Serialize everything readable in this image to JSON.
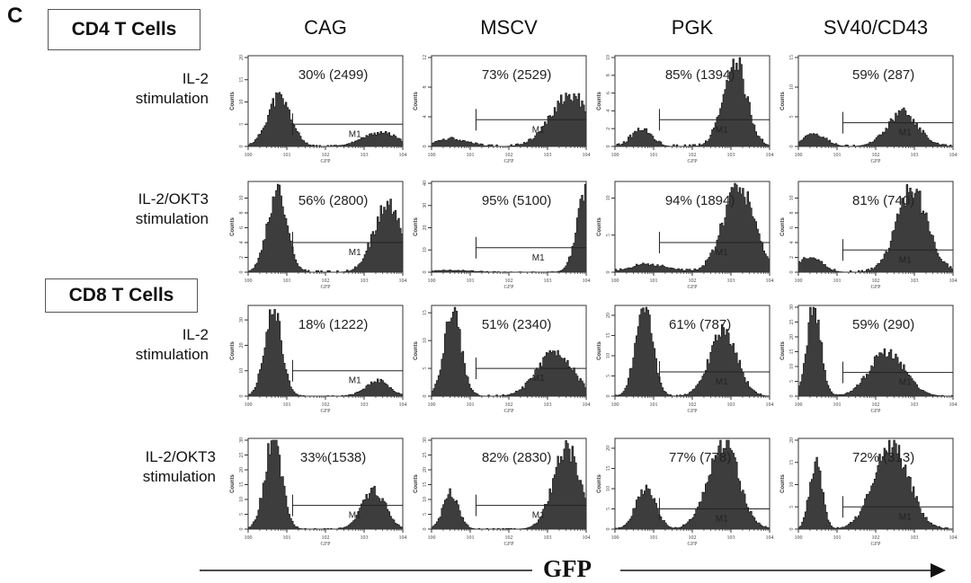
{
  "figure": {
    "panel_letter": "C",
    "groups": [
      {
        "label": "CD4 T Cells"
      },
      {
        "label": "CD8 T Cells"
      }
    ],
    "columns": [
      "CAG",
      "MSCV",
      "PGK",
      "SV40/CD43"
    ],
    "row_labels": [
      {
        "line1": "IL-2",
        "line2": "stimulation"
      },
      {
        "line1": "IL-2/OKT3",
        "line2": "stimulation"
      },
      {
        "line1": "IL-2",
        "line2": "stimulation"
      },
      {
        "line1": "IL-2/OKT3",
        "line2": "stimulation"
      }
    ],
    "bottom_axis_label": "GFP"
  },
  "chart_data": {
    "type": "area",
    "description": "Grid of GFP flow-cytometry histograms (4 rows x 4 promoters)",
    "x_axis": {
      "label": "GFP",
      "scale": "log",
      "range": [
        1,
        10000
      ],
      "tick_labels": [
        "10^0",
        "10^1",
        "10^2",
        "10^3",
        "10^4"
      ]
    },
    "y_axis": {
      "label": "Counts"
    },
    "gate_label": "M1",
    "gate_start_log10": 1.15,
    "panels": [
      {
        "row": 0,
        "column": "CAG",
        "annotation": "30% (2499)",
        "percent": 30,
        "mfi": 2499,
        "ymax": 20,
        "yticks": [
          0,
          5,
          10,
          15,
          20
        ],
        "gate_level": 5,
        "peaks": [
          {
            "mu": 0.8,
            "sigma": 0.3,
            "h": 11
          },
          {
            "mu": 3.4,
            "sigma": 0.45,
            "h": 3
          }
        ]
      },
      {
        "row": 0,
        "column": "MSCV",
        "annotation": "73% (2529)",
        "percent": 73,
        "mfi": 2529,
        "ymax": 12,
        "yticks": [
          0,
          4,
          8,
          12
        ],
        "gate_level": null,
        "peaks": [
          {
            "mu": 0.5,
            "sigma": 0.4,
            "h": 1
          },
          {
            "mu": 3.6,
            "sigma": 0.5,
            "h": 7
          }
        ]
      },
      {
        "row": 0,
        "column": "PGK",
        "annotation": "85% (1394)",
        "percent": 85,
        "mfi": 1394,
        "ymax": 10,
        "yticks": [
          0,
          2,
          4,
          6,
          8,
          10
        ],
        "gate_level": 3,
        "peaks": [
          {
            "mu": 0.7,
            "sigma": 0.25,
            "h": 2
          },
          {
            "mu": 3.1,
            "sigma": 0.3,
            "h": 9.5
          }
        ]
      },
      {
        "row": 0,
        "column": "SV40/CD43",
        "annotation": "59% (287)",
        "percent": 59,
        "mfi": 287,
        "ymax": 15,
        "yticks": [
          0,
          5,
          10,
          15
        ],
        "gate_level": 4,
        "peaks": [
          {
            "mu": 0.4,
            "sigma": 0.3,
            "h": 2
          },
          {
            "mu": 2.7,
            "sigma": 0.4,
            "h": 5.5
          }
        ]
      },
      {
        "row": 1,
        "column": "CAG",
        "annotation": "56% (2800)",
        "percent": 56,
        "mfi": 2800,
        "ymax": 12,
        "yticks": [
          0,
          2,
          4,
          6,
          8,
          10
        ],
        "gate_level": 4,
        "peaks": [
          {
            "mu": 0.75,
            "sigma": 0.25,
            "h": 11
          },
          {
            "mu": 3.6,
            "sigma": 0.35,
            "h": 9
          }
        ]
      },
      {
        "row": 1,
        "column": "MSCV",
        "annotation": "95% (5100)",
        "percent": 95,
        "mfi": 5100,
        "ymax": 40,
        "yticks": [
          0,
          10,
          20,
          30,
          40
        ],
        "gate_level": 11,
        "peaks": [
          {
            "mu": 0.5,
            "sigma": 0.5,
            "h": 0.8
          },
          {
            "mu": 4.05,
            "sigma": 0.25,
            "h": 40
          }
        ]
      },
      {
        "row": 1,
        "column": "PGK",
        "annotation": "94% (1894)",
        "percent": 94,
        "mfi": 1894,
        "ymax": 12,
        "yticks": [
          0,
          5,
          10
        ],
        "gate_level": 4,
        "peaks": [
          {
            "mu": 0.9,
            "sigma": 0.5,
            "h": 1
          },
          {
            "mu": 3.2,
            "sigma": 0.4,
            "h": 11.5
          }
        ]
      },
      {
        "row": 1,
        "column": "SV40/CD43",
        "annotation": "81% (740)",
        "percent": 81,
        "mfi": 740,
        "ymax": 12,
        "yticks": [
          0,
          2,
          4,
          6,
          8,
          10
        ],
        "gate_level": 3,
        "peaks": [
          {
            "mu": 0.3,
            "sigma": 0.3,
            "h": 2
          },
          {
            "mu": 2.95,
            "sigma": 0.4,
            "h": 11
          }
        ]
      },
      {
        "row": 2,
        "column": "CAG",
        "annotation": "18% (1222)",
        "percent": 18,
        "mfi": 1222,
        "ymax": 35,
        "yticks": [
          0,
          10,
          20,
          30
        ],
        "gate_level": 10,
        "peaks": [
          {
            "mu": 0.65,
            "sigma": 0.22,
            "h": 35
          },
          {
            "mu": 3.35,
            "sigma": 0.3,
            "h": 6
          }
        ]
      },
      {
        "row": 2,
        "column": "MSCV",
        "annotation": "51% (2340)",
        "percent": 51,
        "mfi": 2340,
        "ymax": 16,
        "yticks": [
          0,
          5,
          10,
          15
        ],
        "gate_level": 5,
        "peaks": [
          {
            "mu": 0.55,
            "sigma": 0.22,
            "h": 15
          },
          {
            "mu": 3.2,
            "sigma": 0.45,
            "h": 8
          }
        ]
      },
      {
        "row": 2,
        "column": "PGK",
        "annotation": "61% (787)",
        "percent": 61,
        "mfi": 787,
        "ymax": 22,
        "yticks": [
          0,
          5,
          10,
          15,
          20
        ],
        "gate_level": 6,
        "peaks": [
          {
            "mu": 0.75,
            "sigma": 0.22,
            "h": 22
          },
          {
            "mu": 2.8,
            "sigma": 0.35,
            "h": 16
          }
        ]
      },
      {
        "row": 2,
        "column": "SV40/CD43",
        "annotation": "59% (290)",
        "percent": 59,
        "mfi": 290,
        "ymax": 30,
        "yticks": [
          0,
          5,
          10,
          15,
          20,
          25,
          30
        ],
        "gate_level": 8,
        "peaks": [
          {
            "mu": 0.4,
            "sigma": 0.18,
            "h": 30
          },
          {
            "mu": 2.3,
            "sigma": 0.45,
            "h": 15
          }
        ]
      },
      {
        "row": 3,
        "column": "CAG",
        "annotation": "33%(1538)",
        "percent": 33,
        "mfi": 1538,
        "ymax": 30,
        "yticks": [
          0,
          5,
          10,
          15,
          20,
          25,
          30
        ],
        "gate_level": 8,
        "peaks": [
          {
            "mu": 0.65,
            "sigma": 0.22,
            "h": 30
          },
          {
            "mu": 3.25,
            "sigma": 0.3,
            "h": 13
          }
        ]
      },
      {
        "row": 3,
        "column": "MSCV",
        "annotation": "82% (2830)",
        "percent": 82,
        "mfi": 2830,
        "ymax": 30,
        "yticks": [
          0,
          5,
          10,
          15,
          20,
          25,
          30
        ],
        "gate_level": 8,
        "peaks": [
          {
            "mu": 0.5,
            "sigma": 0.2,
            "h": 12
          },
          {
            "mu": 3.5,
            "sigma": 0.35,
            "h": 27
          }
        ]
      },
      {
        "row": 3,
        "column": "PGK",
        "annotation": "77% (778)",
        "percent": 77,
        "mfi": 778,
        "ymax": 22,
        "yticks": [
          0,
          5,
          10,
          15,
          20
        ],
        "gate_level": 5,
        "peaks": [
          {
            "mu": 0.8,
            "sigma": 0.25,
            "h": 10
          },
          {
            "mu": 2.8,
            "sigma": 0.4,
            "h": 21
          }
        ]
      },
      {
        "row": 3,
        "column": "SV40/CD43",
        "annotation": "72% (313)",
        "percent": 72,
        "mfi": 313,
        "ymax": 20,
        "yticks": [
          0,
          5,
          10,
          15,
          20
        ],
        "gate_level": 5,
        "peaks": [
          {
            "mu": 0.45,
            "sigma": 0.16,
            "h": 15
          },
          {
            "mu": 2.4,
            "sigma": 0.45,
            "h": 19
          }
        ]
      }
    ]
  }
}
